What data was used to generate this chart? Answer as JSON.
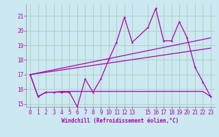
{
  "xlabel": "Windchill (Refroidissement éolien,°C)",
  "bg_color": "#cce8f0",
  "grid_color": "#a8cfc0",
  "line_color": "#aa00aa",
  "x_min": -0.5,
  "x_max": 23.5,
  "y_min": 14.8,
  "y_max": 21.8,
  "line1_x": [
    0,
    1,
    2,
    3,
    4,
    5,
    6,
    7,
    8,
    9,
    10,
    11,
    12,
    13,
    15,
    16,
    17,
    18,
    19,
    20,
    21,
    22,
    23
  ],
  "line1_y": [
    17.0,
    15.5,
    15.8,
    15.8,
    15.8,
    15.8,
    14.8,
    16.7,
    15.8,
    16.7,
    18.0,
    19.2,
    20.9,
    19.2,
    20.2,
    21.5,
    19.3,
    19.3,
    20.6,
    19.5,
    17.5,
    16.5,
    15.5
  ],
  "line2_x": [
    0,
    1,
    2,
    3,
    4,
    5,
    6,
    7,
    8,
    9,
    10,
    11,
    12,
    13,
    14,
    15,
    16,
    17,
    18,
    19,
    20,
    21,
    22,
    23
  ],
  "line2_y": [
    17.0,
    15.5,
    15.8,
    15.8,
    15.85,
    15.85,
    15.85,
    15.85,
    15.85,
    15.85,
    15.85,
    15.85,
    15.85,
    15.85,
    15.85,
    15.85,
    15.85,
    15.85,
    15.85,
    15.85,
    15.85,
    15.85,
    15.85,
    15.5
  ],
  "line3_x": [
    0,
    23
  ],
  "line3_y": [
    17.0,
    18.8
  ],
  "line4_x": [
    0,
    23
  ],
  "line4_y": [
    17.0,
    19.5
  ],
  "yticks": [
    15,
    16,
    17,
    18,
    19,
    20,
    21
  ],
  "xticks": [
    0,
    1,
    2,
    3,
    4,
    5,
    6,
    7,
    8,
    9,
    10,
    11,
    12,
    13,
    15,
    16,
    17,
    18,
    19,
    20,
    21,
    22,
    23
  ]
}
